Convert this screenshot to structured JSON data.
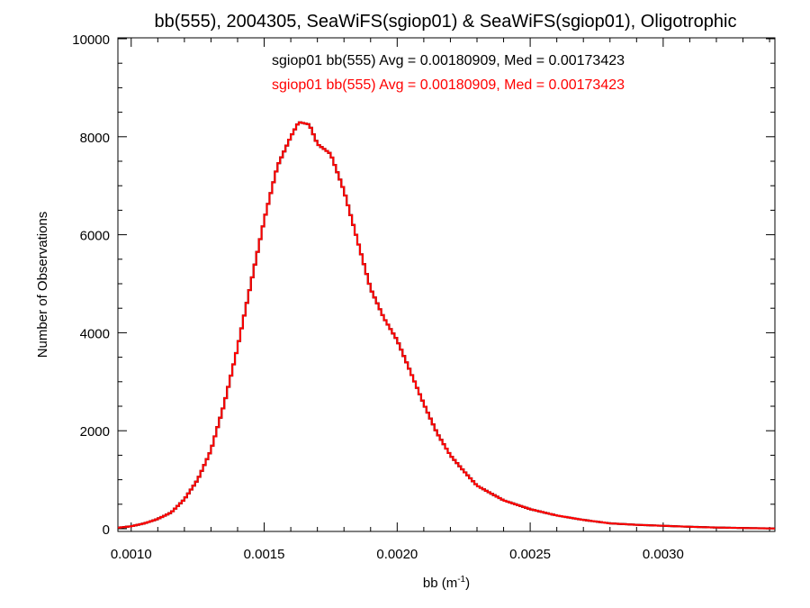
{
  "chart_data": {
    "type": "histogram",
    "title": "bb(555), 2004305, SeaWiFS(sgiop01) & SeaWiFS(sgiop01), Oligotrophic",
    "xlabel_main": "bb (m",
    "xlabel_sup": "-1",
    "xlabel_close": ")",
    "ylabel": "Number of Observations",
    "xlim": [
      0.00095,
      0.00342
    ],
    "ylim": [
      0,
      10000
    ],
    "x_ticks": [
      0.001,
      0.0015,
      0.002,
      0.0025,
      0.003
    ],
    "x_tick_labels": [
      "0.0010",
      "0.0015",
      "0.0020",
      "0.0025",
      "0.0030"
    ],
    "y_ticks": [
      0,
      2000,
      4000,
      6000,
      8000,
      10000
    ],
    "y_tick_labels": [
      "0",
      "2000",
      "4000",
      "6000",
      "8000",
      "10000"
    ],
    "grid": false,
    "annotations": [
      {
        "text": "sgiop01 bb(555) Avg = 0.00180909, Med = 0.00173423",
        "color": "#000000"
      },
      {
        "text": "sgiop01 bb(555) Avg = 0.00180909, Med = 0.00173423",
        "color": "#ff0000"
      }
    ],
    "series": [
      {
        "color": "#000000",
        "points": [
          [
            0.00095,
            20
          ],
          [
            0.001,
            50
          ],
          [
            0.00105,
            110
          ],
          [
            0.0011,
            200
          ],
          [
            0.00115,
            330
          ],
          [
            0.0012,
            600
          ],
          [
            0.00125,
            1000
          ],
          [
            0.0013,
            1600
          ],
          [
            0.00135,
            2550
          ],
          [
            0.0014,
            3700
          ],
          [
            0.00145,
            5000
          ],
          [
            0.0015,
            6300
          ],
          [
            0.00155,
            7400
          ],
          [
            0.0016,
            8000
          ],
          [
            0.00163,
            8300
          ],
          [
            0.00167,
            8250
          ],
          [
            0.0017,
            7850
          ],
          [
            0.00175,
            7650
          ],
          [
            0.0018,
            6900
          ],
          [
            0.00185,
            5900
          ],
          [
            0.0019,
            4900
          ],
          [
            0.00195,
            4300
          ],
          [
            0.002,
            3850
          ],
          [
            0.00205,
            3200
          ],
          [
            0.0021,
            2550
          ],
          [
            0.00215,
            1950
          ],
          [
            0.0022,
            1500
          ],
          [
            0.00225,
            1180
          ],
          [
            0.0023,
            880
          ],
          [
            0.00235,
            730
          ],
          [
            0.0024,
            580
          ],
          [
            0.0025,
            400
          ],
          [
            0.0026,
            270
          ],
          [
            0.0027,
            180
          ],
          [
            0.0028,
            110
          ],
          [
            0.0029,
            80
          ],
          [
            0.003,
            60
          ],
          [
            0.0031,
            40
          ],
          [
            0.0032,
            25
          ],
          [
            0.0033,
            15
          ],
          [
            0.00342,
            5
          ]
        ]
      },
      {
        "color": "#ff0000",
        "points": [
          [
            0.00095,
            20
          ],
          [
            0.001,
            50
          ],
          [
            0.00105,
            110
          ],
          [
            0.0011,
            200
          ],
          [
            0.00115,
            330
          ],
          [
            0.0012,
            600
          ],
          [
            0.00125,
            1000
          ],
          [
            0.0013,
            1600
          ],
          [
            0.00135,
            2550
          ],
          [
            0.0014,
            3700
          ],
          [
            0.00145,
            5000
          ],
          [
            0.0015,
            6300
          ],
          [
            0.00155,
            7400
          ],
          [
            0.0016,
            8000
          ],
          [
            0.00163,
            8300
          ],
          [
            0.00167,
            8250
          ],
          [
            0.0017,
            7850
          ],
          [
            0.00175,
            7650
          ],
          [
            0.0018,
            6900
          ],
          [
            0.00185,
            5900
          ],
          [
            0.0019,
            4900
          ],
          [
            0.00195,
            4300
          ],
          [
            0.002,
            3850
          ],
          [
            0.00205,
            3200
          ],
          [
            0.0021,
            2550
          ],
          [
            0.00215,
            1950
          ],
          [
            0.0022,
            1500
          ],
          [
            0.00225,
            1180
          ],
          [
            0.0023,
            880
          ],
          [
            0.00235,
            730
          ],
          [
            0.0024,
            580
          ],
          [
            0.0025,
            400
          ],
          [
            0.0026,
            270
          ],
          [
            0.0027,
            180
          ],
          [
            0.0028,
            110
          ],
          [
            0.0029,
            80
          ],
          [
            0.003,
            60
          ],
          [
            0.0031,
            40
          ],
          [
            0.0032,
            25
          ],
          [
            0.0033,
            15
          ],
          [
            0.00342,
            5
          ]
        ]
      }
    ]
  }
}
